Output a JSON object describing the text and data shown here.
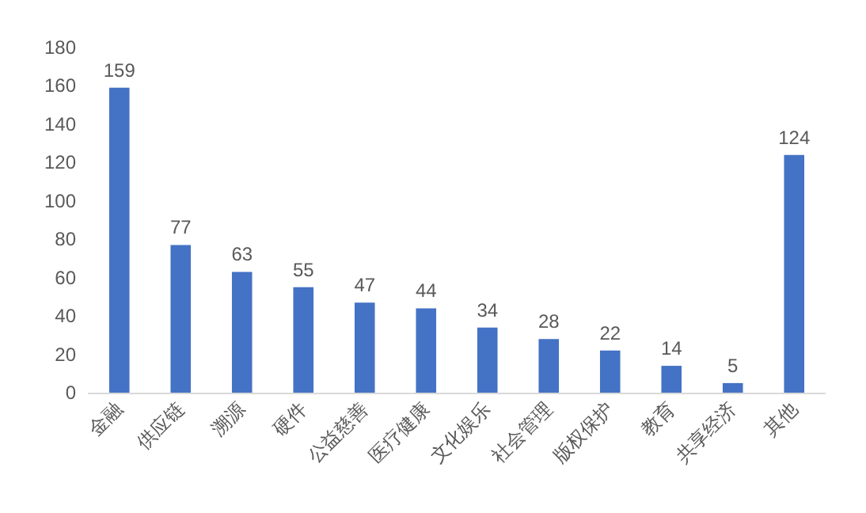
{
  "chart_data": {
    "type": "bar",
    "categories": [
      "金融",
      "供应链",
      "溯源",
      "硬件",
      "公益慈善",
      "医疗健康",
      "文化娱乐",
      "社会管理",
      "版权保护",
      "教育",
      "共享经济",
      "其他"
    ],
    "values": [
      159,
      77,
      63,
      55,
      47,
      44,
      34,
      28,
      22,
      14,
      5,
      124
    ],
    "color": "#4472c4",
    "ylim": [
      0,
      180
    ],
    "yticks": [
      0,
      20,
      40,
      60,
      80,
      100,
      120,
      140,
      160,
      180
    ],
    "grid": false,
    "data_labels": true
  }
}
